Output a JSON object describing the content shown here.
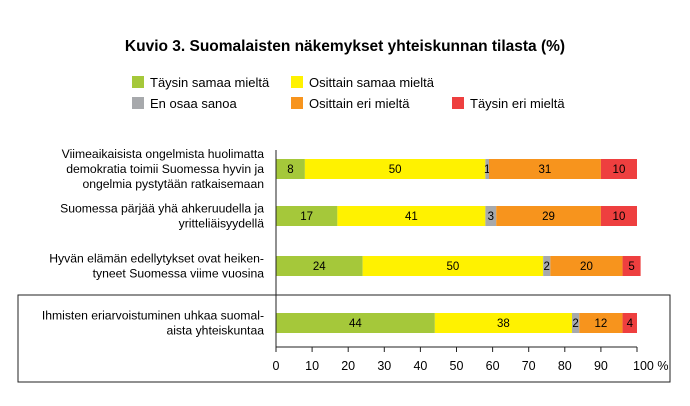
{
  "chart_data": {
    "type": "bar",
    "orientation": "horizontal",
    "stacked": true,
    "title": "Kuvio 3. Suomalaisten näkemykset yhteiskunnan tilasta (%)",
    "xlim": [
      0,
      100
    ],
    "xticks": [
      "0",
      "10",
      "20",
      "30",
      "40",
      "50",
      "60",
      "70",
      "80",
      "90",
      "100 %"
    ],
    "grid": false,
    "legend_position": "top",
    "categories": [
      [
        "Viimeaikaisista ongelmista huolimatta",
        "demokratia toimii Suomessa hyvin ja",
        "ongelmia pystytään ratkaisemaan"
      ],
      [
        "Suomessa pärjää yhä ahkeruudella ja",
        "yritteliäisyydellä"
      ],
      [
        "Hyvän elämän edellytykset ovat heiken-",
        "tyneet Suomessa viime vuosina"
      ],
      [
        "Ihmisten eriarvoistuminen uhkaa suomal-",
        "aista yhteiskuntaa"
      ]
    ],
    "highlighted_category": 3,
    "series": [
      {
        "name": "Täysin samaa mieltä",
        "color": "#a5c83a",
        "values": [
          8,
          17,
          24,
          44
        ]
      },
      {
        "name": "Osittain samaa mieltä",
        "color": "#fff200",
        "values": [
          50,
          41,
          50,
          38
        ]
      },
      {
        "name": "En osaa sanoa",
        "color": "#a7a9ac",
        "values": [
          1,
          3,
          2,
          2
        ]
      },
      {
        "name": "Osittain eri mieltä",
        "color": "#f7941d",
        "values": [
          31,
          29,
          20,
          12
        ]
      },
      {
        "name": "Täysin eri mieltä",
        "color": "#ee3f3f",
        "values": [
          10,
          10,
          5,
          4
        ]
      }
    ]
  }
}
